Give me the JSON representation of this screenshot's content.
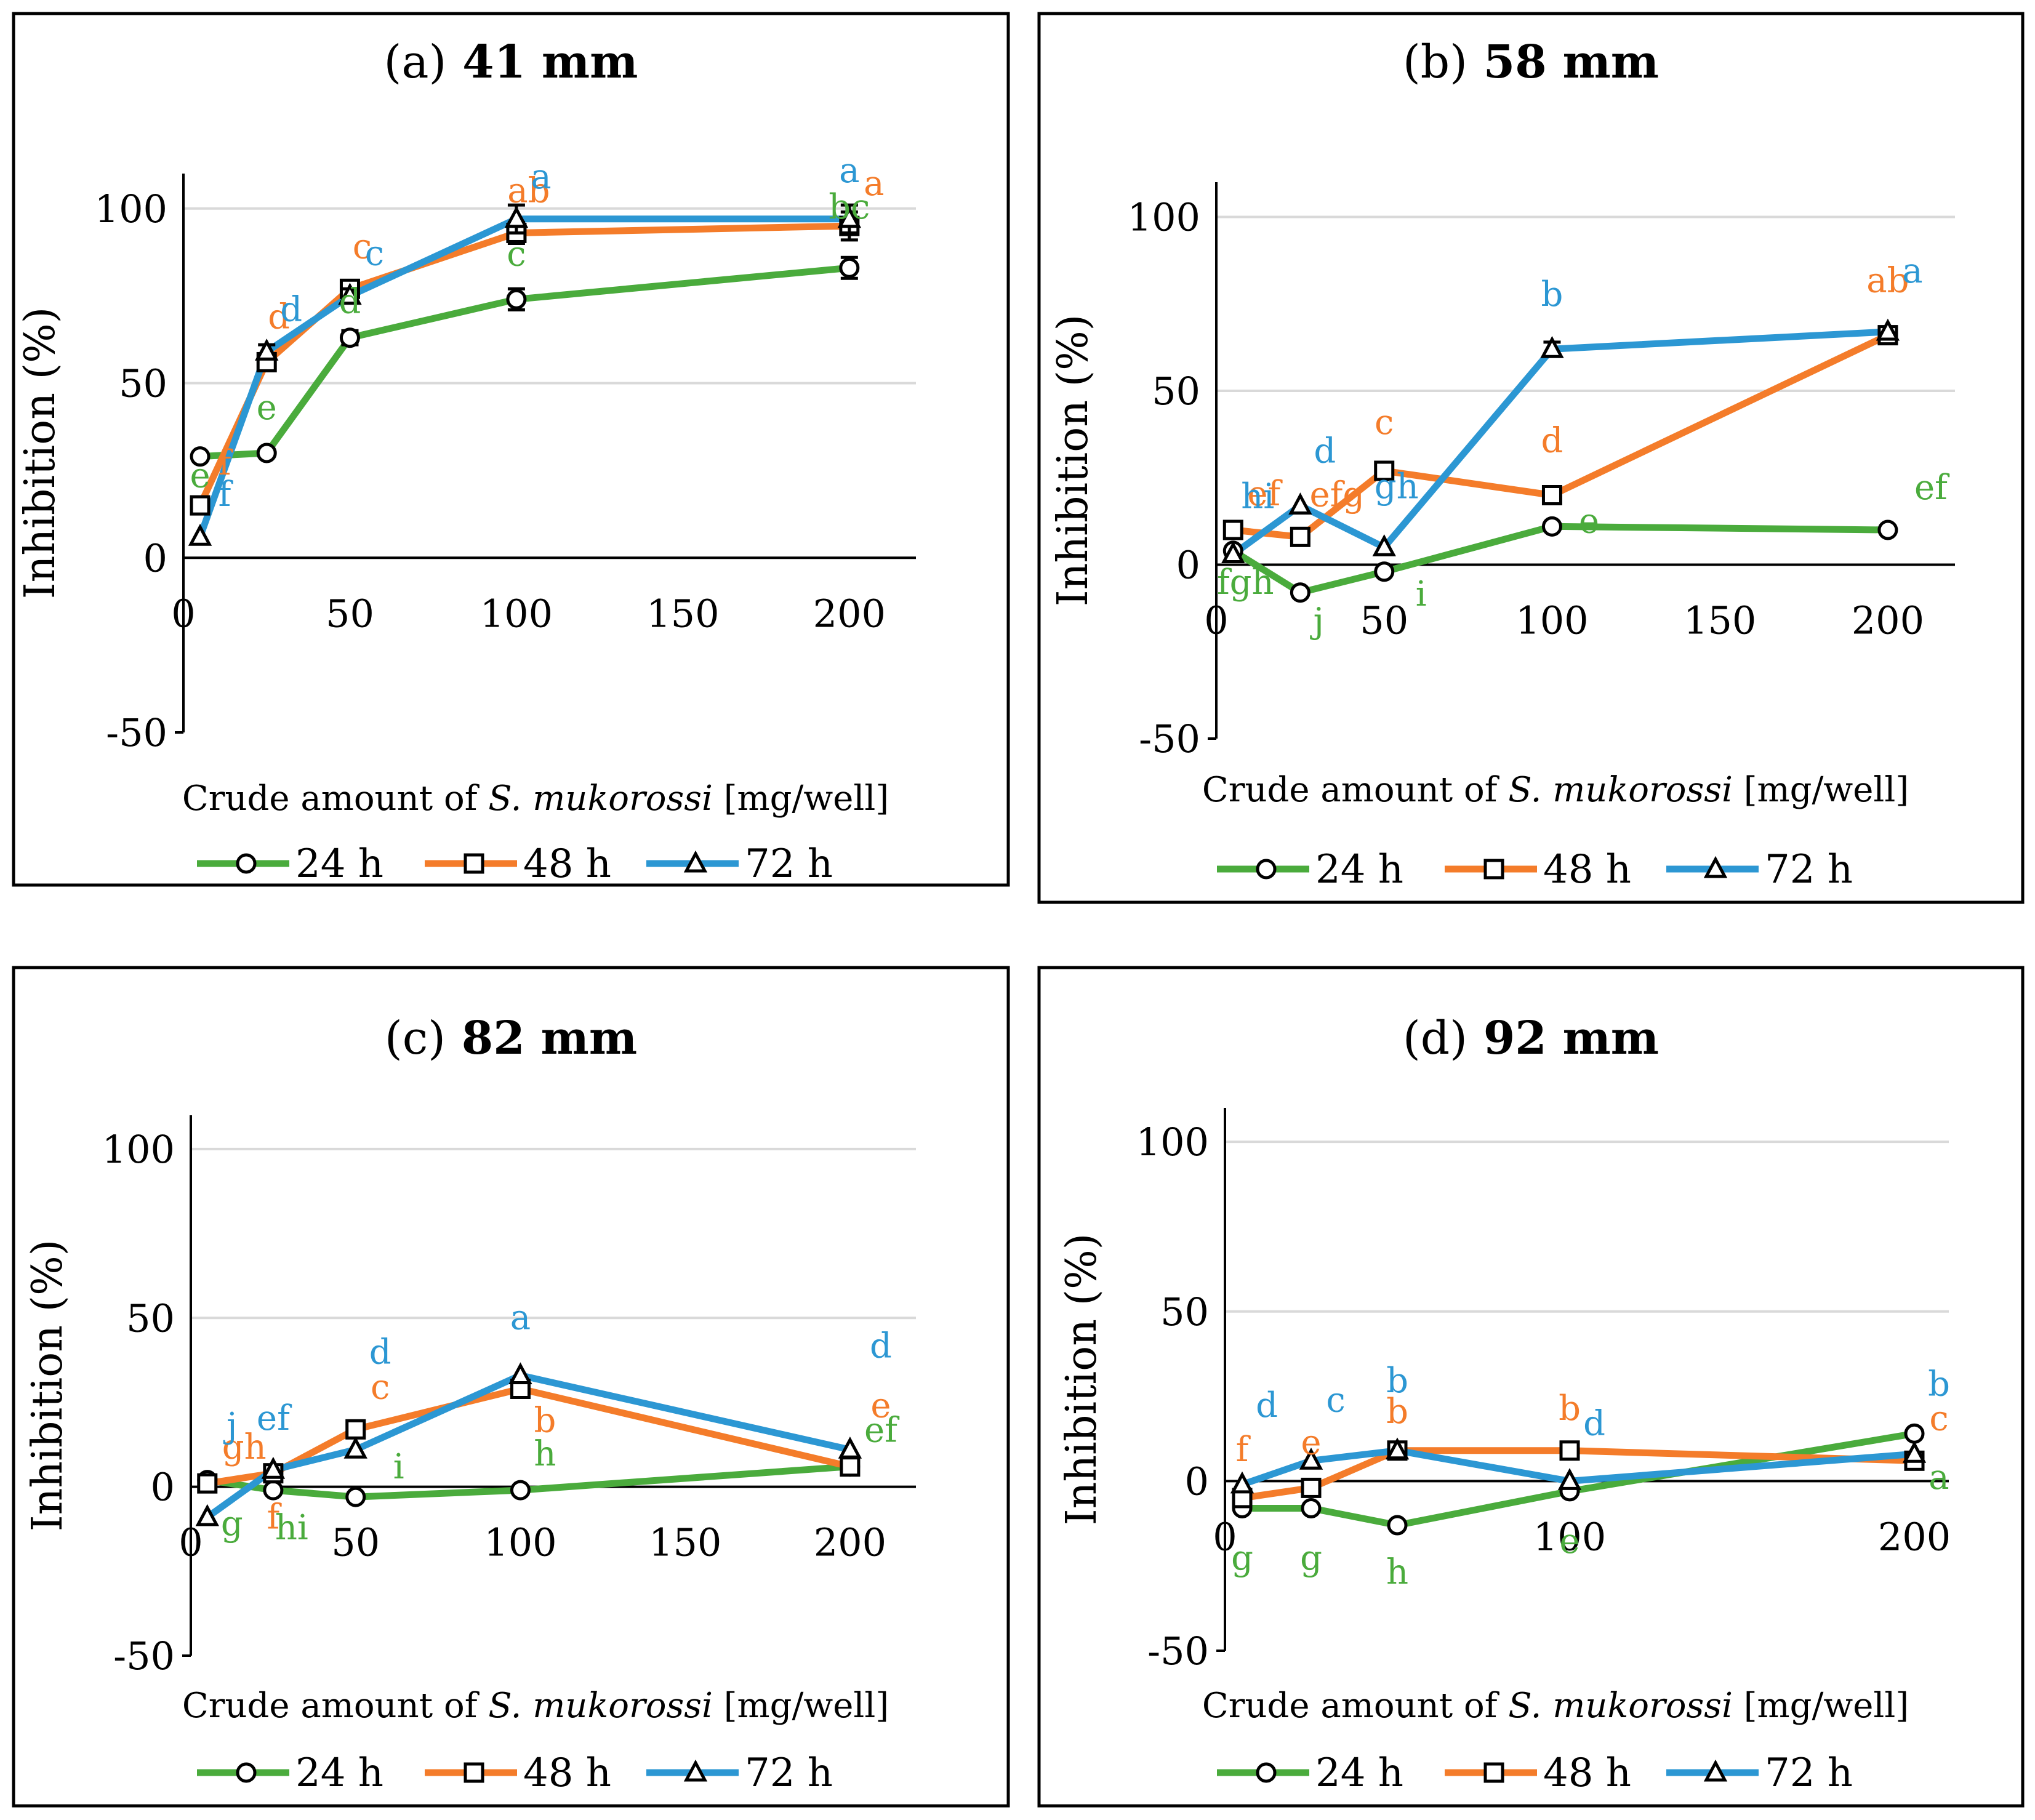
{
  "colors": {
    "24 h": "#4aab3c",
    "48 h": "#f47c2a",
    "72 h": "#2c97d3",
    "grid": "#d9d9d9",
    "frame": "#000000"
  },
  "x_positions": [
    5,
    25,
    50,
    100,
    200
  ],
  "chart_data": [
    {
      "type": "line",
      "title_letter": "(a)",
      "title_text": " 41 mm",
      "xlabel_before": "Crude amount of ",
      "xlabel_italic": "S. mukorossi",
      "xlabel_after": " [mg/well]",
      "ylabel": "Inhibition (%)",
      "xlim": [
        0,
        220
      ],
      "ylim": [
        -50,
        110
      ],
      "xticks": [
        0,
        50,
        100,
        150,
        200
      ],
      "yticks": [
        -50,
        0,
        50,
        100
      ],
      "series": [
        {
          "name": "24 h",
          "marker": "circle",
          "values": [
            29,
            30,
            63,
            74,
            83
          ],
          "err": [
            1,
            1,
            2,
            3,
            3
          ],
          "labels": [
            "e",
            "e",
            "d",
            "c",
            "bc"
          ]
        },
        {
          "name": "48 h",
          "marker": "square",
          "values": [
            15,
            56,
            77,
            93,
            95
          ],
          "err": [
            1,
            2,
            2,
            3,
            4
          ],
          "labels": [
            "f",
            "d",
            "c",
            "ab",
            "a"
          ]
        },
        {
          "name": "72 h",
          "marker": "triangle",
          "values": [
            6,
            59,
            75,
            97,
            97
          ],
          "err": [
            1,
            2,
            2,
            4,
            4
          ],
          "labels": [
            "f",
            "d",
            "c",
            "a",
            "a"
          ]
        }
      ]
    },
    {
      "type": "line",
      "title_letter": "(b)",
      "title_text": " 58 mm",
      "xlabel_before": "Crude amount of ",
      "xlabel_italic": "S. mukorossi",
      "xlabel_after": " [mg/well]",
      "ylabel": "Inhibition (%)",
      "xlim": [
        0,
        220
      ],
      "ylim": [
        -50,
        110
      ],
      "xticks": [
        0,
        50,
        100,
        150,
        200
      ],
      "yticks": [
        -50,
        0,
        50,
        100
      ],
      "series": [
        {
          "name": "24 h",
          "marker": "circle",
          "values": [
            4,
            -8,
            -2,
            11,
            10
          ],
          "err": [
            1,
            1,
            1,
            1,
            1
          ],
          "labels": [
            "fgh",
            "j",
            "i",
            "e",
            "ef"
          ]
        },
        {
          "name": "48 h",
          "marker": "square",
          "values": [
            10,
            8,
            27,
            20,
            66
          ],
          "err": [
            1,
            1,
            1,
            1,
            1
          ],
          "labels": [
            "ef",
            "efg",
            "c",
            "d",
            "ab"
          ]
        },
        {
          "name": "72 h",
          "marker": "triangle",
          "values": [
            3,
            17,
            5,
            62,
            67
          ],
          "err": [
            1,
            1,
            1,
            2,
            1
          ],
          "labels": [
            "hi",
            "d",
            "gh",
            "b",
            "a"
          ]
        }
      ]
    },
    {
      "type": "line",
      "title_letter": "(c)",
      "title_text": " 82 mm",
      "xlabel_before": "Crude amount of ",
      "xlabel_italic": "S. mukorossi",
      "xlabel_after": " [mg/well]",
      "ylabel": "Inhibition (%)",
      "xlim": [
        0,
        220
      ],
      "ylim": [
        -50,
        110
      ],
      "xticks": [
        0,
        50,
        100,
        150,
        200
      ],
      "yticks": [
        -50,
        0,
        50,
        100
      ],
      "series": [
        {
          "name": "24 h",
          "marker": "circle",
          "values": [
            2,
            -1,
            -3,
            -1,
            6
          ],
          "err": [
            1,
            1,
            1,
            1,
            1
          ],
          "labels": [
            "g",
            "hi",
            "i",
            "h",
            "ef"
          ]
        },
        {
          "name": "48 h",
          "marker": "square",
          "values": [
            1,
            4,
            17,
            29,
            6
          ],
          "err": [
            1,
            1,
            1,
            1,
            1
          ],
          "labels": [
            "gh",
            "f",
            "c",
            "b",
            "e"
          ]
        },
        {
          "name": "72 h",
          "marker": "triangle",
          "values": [
            -9,
            5,
            11,
            33,
            11
          ],
          "err": [
            1,
            1,
            1,
            1,
            1
          ],
          "labels": [
            "j",
            "ef",
            "d",
            "a",
            "d"
          ]
        }
      ]
    },
    {
      "type": "line",
      "title_letter": "(d)",
      "title_text": " 92 mm",
      "xlabel_before": "Crude amount of ",
      "xlabel_italic": "S. mukorossi",
      "xlabel_after": " [mg/well]",
      "ylabel": "Inhibition (%)",
      "xlim": [
        0,
        210
      ],
      "ylim": [
        -50,
        110
      ],
      "xticks": [
        0,
        100,
        200
      ],
      "yticks": [
        -50,
        0,
        50,
        100
      ],
      "series": [
        {
          "name": "24 h",
          "marker": "circle",
          "values": [
            -8,
            -8,
            -13,
            -3,
            14
          ],
          "err": [
            1,
            1,
            1,
            1,
            1
          ],
          "labels": [
            "g",
            "g",
            "h",
            "e",
            "a"
          ]
        },
        {
          "name": "48 h",
          "marker": "square",
          "values": [
            -5,
            -2,
            9,
            9,
            6
          ],
          "err": [
            1,
            1,
            1,
            1,
            1
          ],
          "labels": [
            "f",
            "e",
            "b",
            "b",
            "c"
          ]
        },
        {
          "name": "72 h",
          "marker": "triangle",
          "values": [
            -1,
            6,
            9,
            0,
            8
          ],
          "err": [
            1,
            1,
            1,
            1,
            1
          ],
          "labels": [
            "d",
            "c",
            "b",
            "d",
            "b"
          ]
        }
      ]
    }
  ],
  "legend": [
    "24 h",
    "48 h",
    "72 h"
  ]
}
